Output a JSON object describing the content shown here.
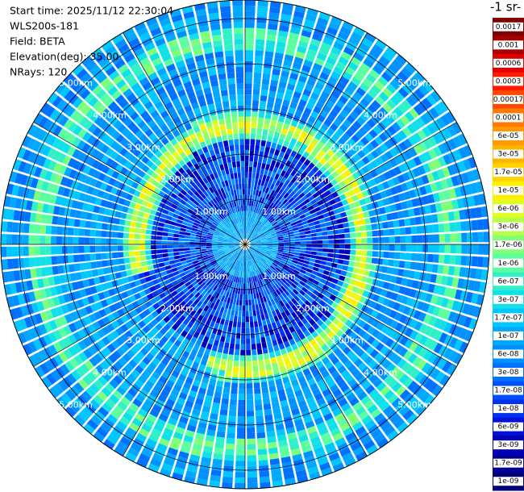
{
  "header": {
    "lines": [
      "Start time: 2025/11/12 22:30:04",
      "WLS200s-181",
      "Field: BETA",
      "Elevation(deg): 35.00",
      "NRays: 120"
    ]
  },
  "range_rings": [
    "1.00km",
    "2.00km",
    "3.00km",
    "4.00km",
    "5.00km"
  ],
  "colorbar": {
    "title": "-1 sr-",
    "labels": [
      "0.0017",
      "0.001",
      "0.0006",
      "0.0003",
      "0.00017",
      "0.0001",
      "6e-05",
      "3e-05",
      "1.7e-05",
      "1e-05",
      "6e-06",
      "3e-06",
      "1.7e-06",
      "1e-06",
      "6e-07",
      "3e-07",
      "1.7e-07",
      "1e-07",
      "6e-08",
      "3e-08",
      "1.7e-08",
      "1e-08",
      "6e-09",
      "3e-09",
      "1.7e-09",
      "1e-09"
    ],
    "colors": [
      "#7f0000",
      "#a80000",
      "#e00000",
      "#ff1a00",
      "#ff4a00",
      "#ff7a00",
      "#ff9a00",
      "#ffb400",
      "#ffd400",
      "#fff000",
      "#e0ff20",
      "#b4ff4c",
      "#80ff78",
      "#5cffa0",
      "#30f0c8",
      "#10e0e8",
      "#00c8ff",
      "#00a8ff",
      "#0090ff",
      "#0070ff",
      "#0050ff",
      "#0030f0",
      "#0010d8",
      "#0000b8",
      "#000096",
      "#00007a"
    ]
  }
}
